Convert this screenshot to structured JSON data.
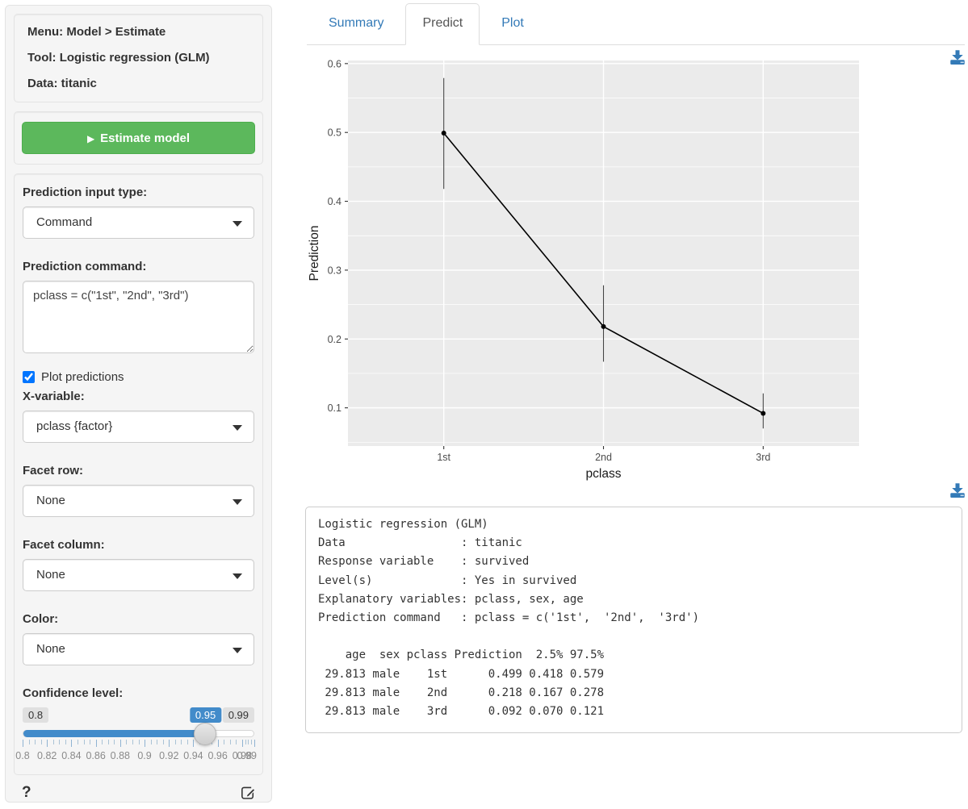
{
  "sidebar": {
    "info": {
      "menu": "Menu: Model > Estimate",
      "tool": "Tool: Logistic regression (GLM)",
      "data": "Data: titanic"
    },
    "estimate": {
      "label": "Estimate model",
      "play_glyph": "▶"
    },
    "controls": {
      "input_type": {
        "label": "Prediction input type:",
        "value": "Command"
      },
      "command": {
        "label": "Prediction command:",
        "value": "pclass = c(\"1st\", \"2nd\", \"3rd\")"
      },
      "plot_predictions": {
        "label": "Plot predictions",
        "checked": "checked"
      },
      "x_variable": {
        "label": "X-variable:",
        "value": "pclass {factor}"
      },
      "facet_row": {
        "label": "Facet row:",
        "value": "None"
      },
      "facet_column": {
        "label": "Facet column:",
        "value": "None"
      },
      "color": {
        "label": "Color:",
        "value": "None"
      },
      "conf_level": {
        "label": "Confidence level:",
        "min": 0.8,
        "max": 0.99,
        "value": 0.95,
        "min_label": "0.8",
        "max_label": "0.99",
        "value_label": "0.95",
        "tick_labels": [
          "0.8",
          "0.82",
          "0.84",
          "0.86",
          "0.88",
          "0.9",
          "0.92",
          "0.94",
          "0.96",
          "0.98",
          "0.99"
        ]
      }
    },
    "footer": {
      "help_label": "?"
    }
  },
  "tabs": {
    "summary": "Summary",
    "predict": "Predict",
    "plot": "Plot"
  },
  "chart_data": {
    "type": "line",
    "x": [
      "1st",
      "2nd",
      "3rd"
    ],
    "series": [
      {
        "name": "Prediction",
        "values": [
          0.499,
          0.218,
          0.092
        ],
        "ci_low": [
          0.418,
          0.167,
          0.07
        ],
        "ci_high": [
          0.579,
          0.278,
          0.121
        ]
      }
    ],
    "xlabel": "pclass",
    "ylabel": "Prediction",
    "ylim": [
      0.0445,
      0.6045
    ],
    "yticks": [
      0.1,
      0.2,
      0.3,
      0.4,
      0.5,
      0.6
    ],
    "grid": true,
    "legend": "none",
    "panel_bg": "#EBEBEB"
  },
  "output": {
    "lines": [
      "Logistic regression (GLM)",
      "Data                 : titanic",
      "Response variable    : survived",
      "Level(s)             : Yes in survived",
      "Explanatory variables: pclass, sex, age",
      "Prediction command   : pclass = c('1st',  '2nd',  '3rd')",
      "",
      "    age  sex pclass Prediction  2.5% 97.5%",
      " 29.813 male    1st      0.499 0.418 0.579",
      " 29.813 male    2nd      0.218 0.167 0.278",
      " 29.813 male    3rd      0.092 0.070 0.121"
    ]
  },
  "colors": {
    "accent_green": "#5cb85c",
    "link_blue": "#337ab7",
    "slider_blue": "#428bca",
    "well_gray": "#f5f5f5",
    "plot_panel": "#EBEBEB"
  },
  "icons": {
    "download": "download-icon",
    "edit": "edit-icon",
    "help": "question-mark-icon",
    "play": "play-icon",
    "caret": "caret-down-icon"
  }
}
